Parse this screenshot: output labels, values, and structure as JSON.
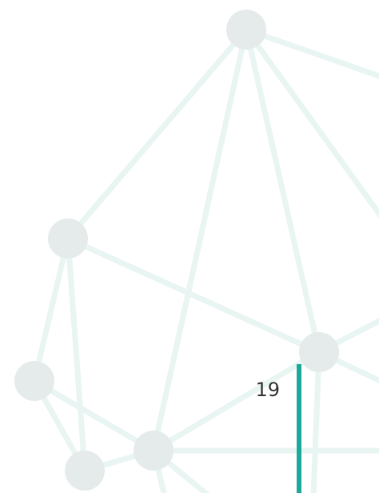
{
  "page_number": "19"
}
